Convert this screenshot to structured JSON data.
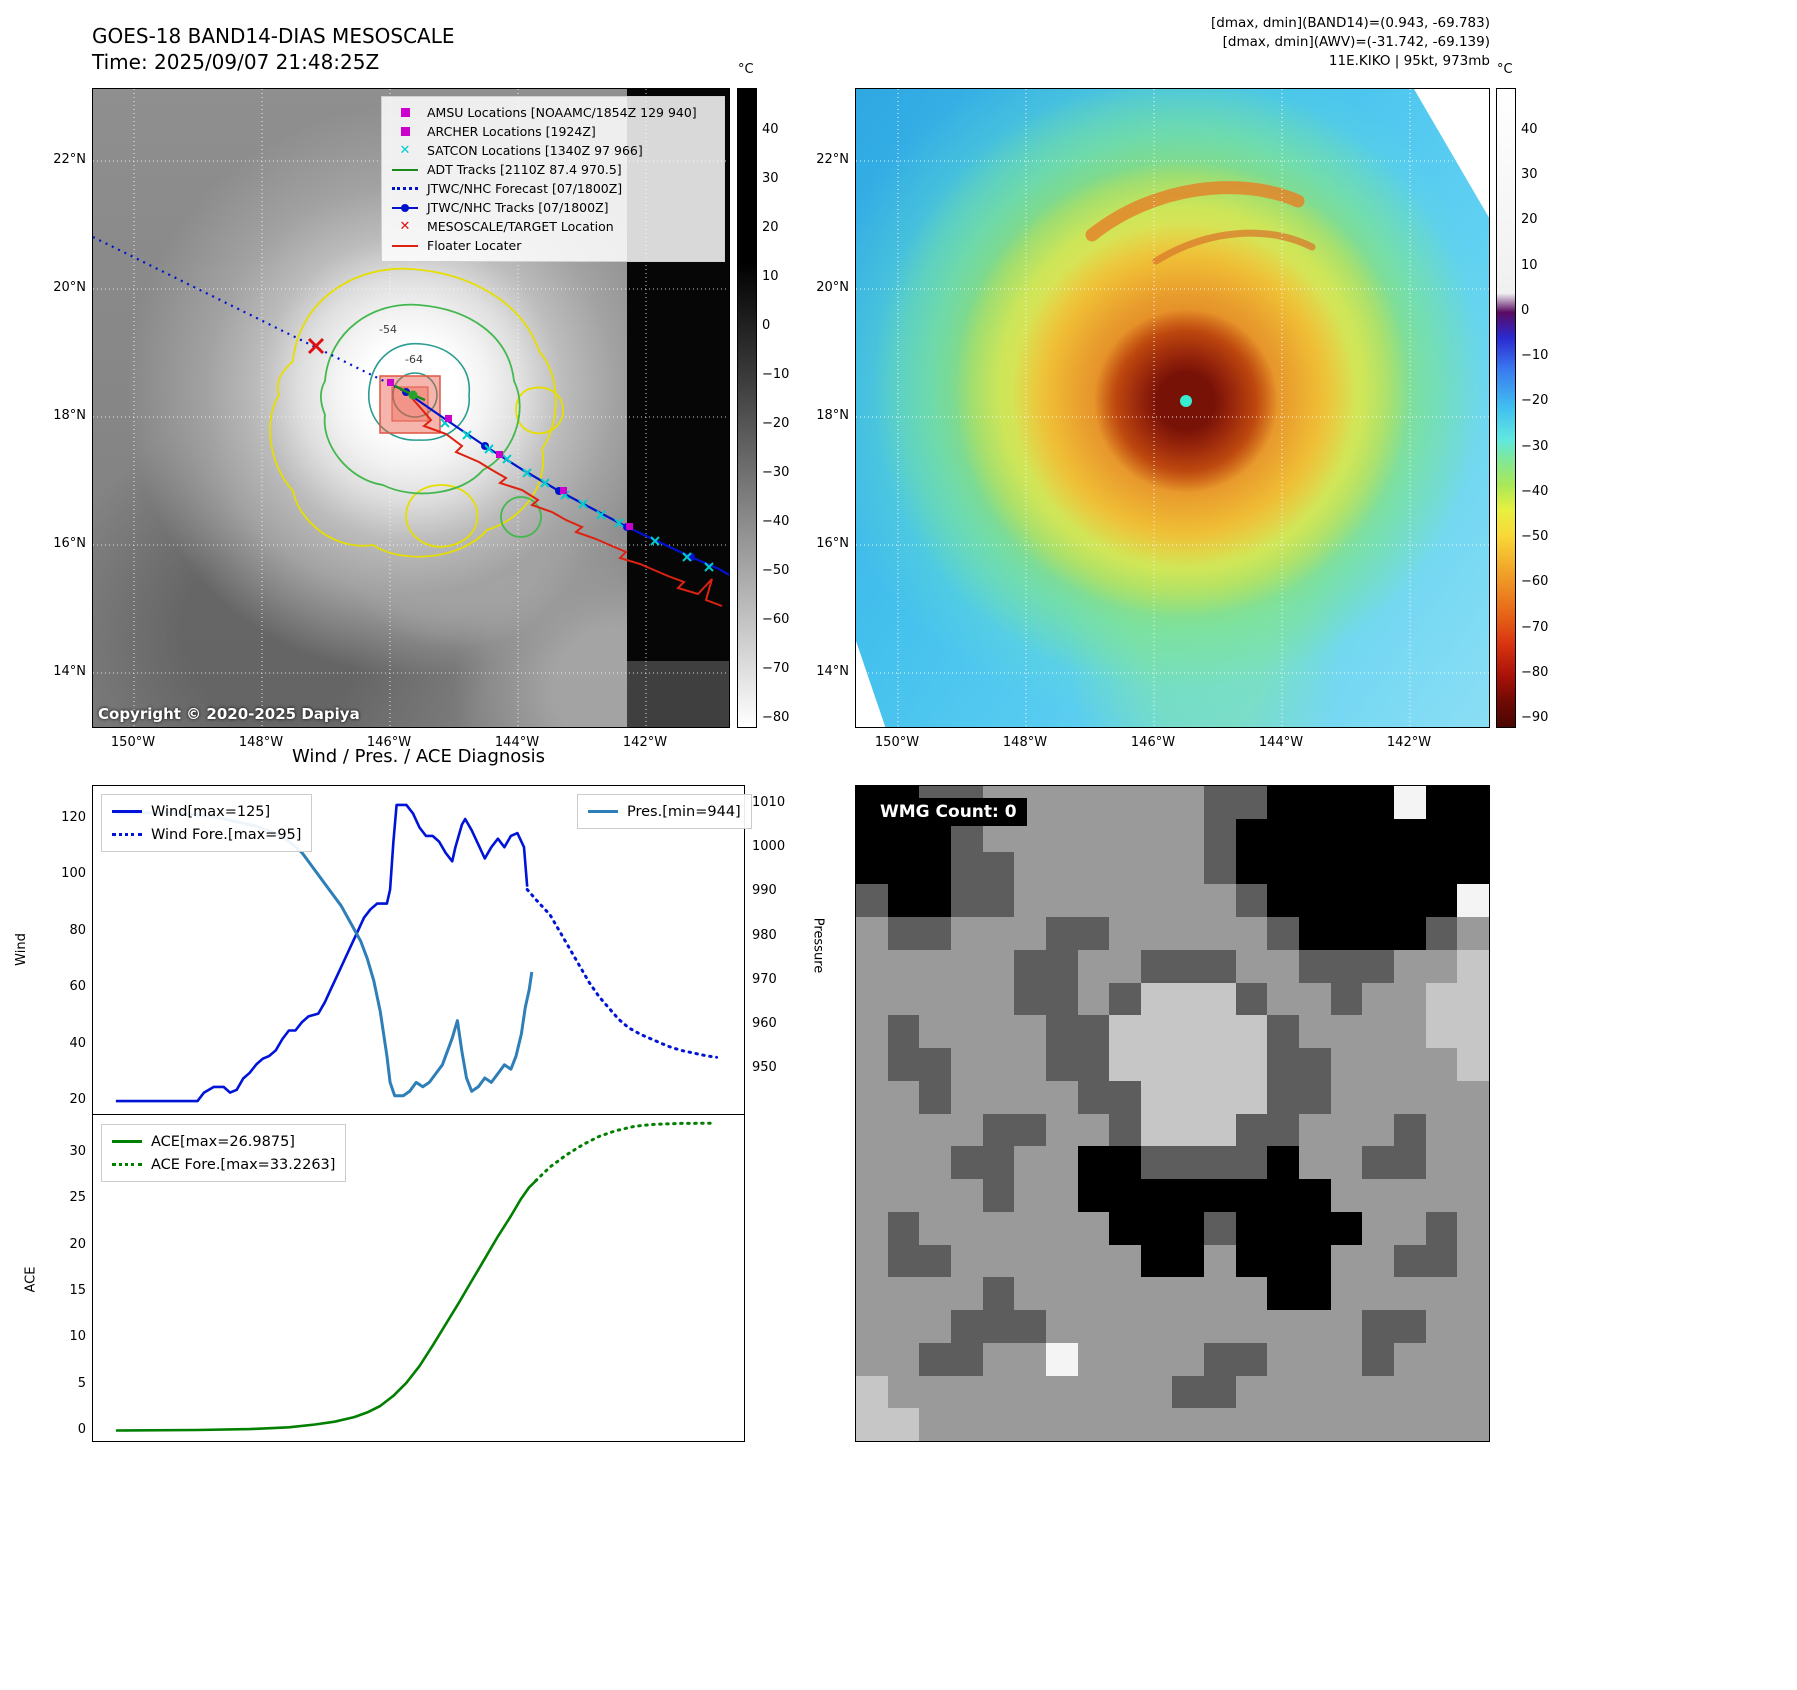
{
  "header": {
    "title": "GOES-18 BAND14-DIAS MESOSCALE",
    "time_line": "Time: 2025/09/07 21:48:25Z",
    "dmax_band14": "[dmax, dmin](BAND14)=(0.943, -69.783)",
    "dmax_awv": "[dmax, dmin](AWV)=(-31.742, -69.139)",
    "storm_info": "11E.KIKO | 95kt, 973mb"
  },
  "geo_axes": {
    "lat_ticks": [
      "22°N",
      "20°N",
      "18°N",
      "16°N",
      "14°N"
    ],
    "lon_ticks": [
      "150°W",
      "148°W",
      "146°W",
      "144°W",
      "142°W"
    ]
  },
  "band14_panel": {
    "legend_items": [
      {
        "label": "AMSU Locations [NOAAMC/1854Z 129 940]",
        "marker": "magenta-square"
      },
      {
        "label": "ARCHER Locations [1924Z]",
        "marker": "magenta-square"
      },
      {
        "label": "SATCON Locations [1340Z 97 966]",
        "marker": "cyan-x"
      },
      {
        "label": "ADT Tracks [2110Z 87.4 970.5]",
        "marker": "green-line"
      },
      {
        "label": "JTWC/NHC Forecast [07/1800Z]",
        "marker": "blue-dotted-line"
      },
      {
        "label": "JTWC/NHC Tracks [07/1800Z]",
        "marker": "blue-line-dot"
      },
      {
        "label": "MESOSCALE/TARGET Location",
        "marker": "red-x"
      },
      {
        "label": "Floater Locater",
        "marker": "red-line"
      }
    ],
    "contour_label_outer": "-54",
    "contour_label_inner": "-64",
    "copyright": "Copyright © 2020-2025 Dapiya",
    "colorbar_unit": "°C",
    "colorbar_ticks": [
      "40",
      "30",
      "20",
      "10",
      "0",
      "−10",
      "−20",
      "−30",
      "−40",
      "−50",
      "−60",
      "−70",
      "−80"
    ]
  },
  "awv_panel": {
    "colorbar_unit": "°C",
    "colorbar_ticks": [
      "40",
      "30",
      "20",
      "10",
      "0",
      "−10",
      "−20",
      "−30",
      "−40",
      "−50",
      "−60",
      "−70",
      "−80",
      "−90"
    ]
  },
  "diagnosis": {
    "title": "Wind / Pres. / ACE Diagnosis",
    "wind_ylabel": "Wind",
    "pressure_ylabel": "Pressure",
    "ace_ylabel": "ACE",
    "wind_yticks": [
      "120",
      "100",
      "80",
      "60",
      "40",
      "20"
    ],
    "pressure_yticks": [
      "1010",
      "1000",
      "990",
      "980",
      "970",
      "960",
      "950"
    ],
    "ace_yticks": [
      "30",
      "25",
      "20",
      "15",
      "10",
      "5",
      "0"
    ],
    "legend_wind": [
      "Wind[max=125]",
      "Wind Fore.[max=95]"
    ],
    "legend_pres": "Pres.[min=944]",
    "legend_ace": [
      "ACE[max=26.9875]",
      "ACE Fore.[max=33.2263]"
    ]
  },
  "wmg_panel": {
    "count_label": "WMG Count: 0",
    "palette": {
      "0": "#000000",
      "1": "#5d5d5d",
      "2": "#9a9a9a",
      "3": "#c6c6c6",
      "4": "#f4f4f4"
    },
    "grid": [
      "00112222222110000400",
      "00012222222100000000",
      "00011222222100000000",
      "10011222222210000004",
      "21122211222221000012",
      "22222112211122111223",
      "22222112133312212233",
      "21222211333331222233",
      "21122211333331122223",
      "22122221133331122222",
      "22221122133311222122",
      "22211220011110221122",
      "22221220000000022222",
      "21222222000100002212",
      "21122222200200022112",
      "22221222222220022222",
      "22211122222222221122",
      "22112242222112221222",
      "32222222221122222222",
      "33222222222222222222"
    ]
  },
  "chart_data": [
    {
      "type": "line",
      "title": "Wind / Pres. / ACE Diagnosis",
      "ylabel_left": "Wind",
      "ylabel_right": "Pressure",
      "ylim_left": [
        14.7,
        131.7
      ],
      "ylim_right": [
        939.4,
        1014.1
      ],
      "yticks_left": [
        120,
        100,
        80,
        60,
        40,
        20
      ],
      "yticks_right": [
        1010,
        1000,
        990,
        980,
        970,
        960,
        950
      ],
      "legend_position": "upper-left and upper-right",
      "grid": false,
      "series": [
        {
          "name": "Wind[max=125]",
          "axis": "left",
          "style": "solid",
          "color": "#0013d8",
          "width": 2.6,
          "points": [
            [
              0.035,
              20
            ],
            [
              0.16,
              20
            ],
            [
              0.17,
              23
            ],
            [
              0.185,
              25
            ],
            [
              0.2,
              25
            ],
            [
              0.21,
              23
            ],
            [
              0.22,
              24
            ],
            [
              0.23,
              28
            ],
            [
              0.24,
              30
            ],
            [
              0.25,
              33
            ],
            [
              0.26,
              35
            ],
            [
              0.27,
              36
            ],
            [
              0.28,
              38
            ],
            [
              0.29,
              42
            ],
            [
              0.3,
              45
            ],
            [
              0.31,
              45
            ],
            [
              0.32,
              48
            ],
            [
              0.33,
              50
            ],
            [
              0.345,
              51
            ],
            [
              0.355,
              55
            ],
            [
              0.365,
              60
            ],
            [
              0.375,
              65
            ],
            [
              0.385,
              70
            ],
            [
              0.395,
              75
            ],
            [
              0.405,
              80
            ],
            [
              0.415,
              85
            ],
            [
              0.425,
              88
            ],
            [
              0.435,
              90
            ],
            [
              0.45,
              90
            ],
            [
              0.455,
              95
            ],
            [
              0.46,
              112
            ],
            [
              0.465,
              125
            ],
            [
              0.48,
              125
            ],
            [
              0.49,
              122
            ],
            [
              0.5,
              117
            ],
            [
              0.51,
              114
            ],
            [
              0.52,
              114
            ],
            [
              0.53,
              112
            ],
            [
              0.54,
              108
            ],
            [
              0.55,
              105
            ],
            [
              0.555,
              110
            ],
            [
              0.565,
              118
            ],
            [
              0.57,
              120
            ],
            [
              0.58,
              116
            ],
            [
              0.59,
              111
            ],
            [
              0.6,
              106
            ],
            [
              0.61,
              110
            ],
            [
              0.62,
              113
            ],
            [
              0.63,
              110
            ],
            [
              0.64,
              114
            ],
            [
              0.65,
              115
            ],
            [
              0.66,
              110
            ],
            [
              0.665,
              96
            ]
          ]
        },
        {
          "name": "Wind Fore.[max=95]",
          "axis": "left",
          "style": "dotted",
          "color": "#0013d8",
          "width": 3,
          "points": [
            [
              0.665,
              95
            ],
            [
              0.68,
              91
            ],
            [
              0.7,
              86
            ],
            [
              0.715,
              80
            ],
            [
              0.73,
              74
            ],
            [
              0.745,
              68
            ],
            [
              0.76,
              62
            ],
            [
              0.775,
              57
            ],
            [
              0.79,
              53
            ],
            [
              0.805,
              49
            ],
            [
              0.82,
              46
            ],
            [
              0.84,
              43.5
            ],
            [
              0.86,
              41.5
            ],
            [
              0.88,
              39.5
            ],
            [
              0.9,
              38
            ],
            [
              0.92,
              37
            ],
            [
              0.94,
              36
            ],
            [
              0.955,
              35.5
            ]
          ]
        },
        {
          "name": "Pres.[min=944]",
          "axis": "right",
          "style": "solid",
          "color": "#2e7eb8",
          "width": 3,
          "points": [
            [
              0.035,
              1008
            ],
            [
              0.13,
              1008
            ],
            [
              0.19,
              1007
            ],
            [
              0.25,
              1005
            ],
            [
              0.285,
              1003
            ],
            [
              0.305,
              1001
            ],
            [
              0.32,
              999
            ],
            [
              0.335,
              996
            ],
            [
              0.35,
              993
            ],
            [
              0.365,
              990
            ],
            [
              0.38,
              987
            ],
            [
              0.395,
              983
            ],
            [
              0.41,
              979
            ],
            [
              0.42,
              975
            ],
            [
              0.43,
              970
            ],
            [
              0.44,
              963
            ],
            [
              0.45,
              953
            ],
            [
              0.455,
              947
            ],
            [
              0.462,
              944
            ],
            [
              0.475,
              944
            ],
            [
              0.485,
              945
            ],
            [
              0.495,
              947
            ],
            [
              0.505,
              946
            ],
            [
              0.515,
              947
            ],
            [
              0.525,
              949
            ],
            [
              0.535,
              951
            ],
            [
              0.55,
              957
            ],
            [
              0.558,
              961
            ],
            [
              0.565,
              954
            ],
            [
              0.572,
              948
            ],
            [
              0.58,
              945
            ],
            [
              0.59,
              946
            ],
            [
              0.6,
              948
            ],
            [
              0.61,
              947
            ],
            [
              0.62,
              949
            ],
            [
              0.63,
              951
            ],
            [
              0.64,
              950
            ],
            [
              0.648,
              953
            ],
            [
              0.656,
              958
            ],
            [
              0.662,
              964
            ],
            [
              0.668,
              968
            ],
            [
              0.672,
              972
            ]
          ]
        }
      ]
    },
    {
      "type": "line",
      "ylabel_left": "ACE",
      "ylim_left": [
        -1.3,
        34.0
      ],
      "yticks_left": [
        30,
        25,
        20,
        15,
        10,
        5,
        0
      ],
      "legend_position": "upper-left",
      "grid": false,
      "series": [
        {
          "name": "ACE[max=26.9875]",
          "axis": "left",
          "style": "solid",
          "color": "#007f00",
          "width": 2.6,
          "points": [
            [
              0.035,
              0.05
            ],
            [
              0.16,
              0.1
            ],
            [
              0.24,
              0.2
            ],
            [
              0.3,
              0.4
            ],
            [
              0.34,
              0.7
            ],
            [
              0.37,
              1.0
            ],
            [
              0.4,
              1.5
            ],
            [
              0.42,
              2.0
            ],
            [
              0.44,
              2.7
            ],
            [
              0.46,
              3.8
            ],
            [
              0.48,
              5.2
            ],
            [
              0.5,
              7.0
            ],
            [
              0.52,
              9.2
            ],
            [
              0.54,
              11.5
            ],
            [
              0.56,
              13.8
            ],
            [
              0.58,
              16.2
            ],
            [
              0.6,
              18.6
            ],
            [
              0.62,
              21.0
            ],
            [
              0.64,
              23.2
            ],
            [
              0.655,
              25.0
            ],
            [
              0.668,
              26.3
            ],
            [
              0.678,
              26.9875
            ]
          ]
        },
        {
          "name": "ACE Fore.[max=33.2263]",
          "axis": "left",
          "style": "dotted",
          "color": "#007f00",
          "width": 3,
          "points": [
            [
              0.678,
              27.0
            ],
            [
              0.7,
              28.5
            ],
            [
              0.725,
              29.8
            ],
            [
              0.75,
              30.9
            ],
            [
              0.775,
              31.8
            ],
            [
              0.8,
              32.4
            ],
            [
              0.83,
              32.9
            ],
            [
              0.86,
              33.1
            ],
            [
              0.9,
              33.2
            ],
            [
              0.95,
              33.2263
            ]
          ]
        }
      ]
    }
  ]
}
